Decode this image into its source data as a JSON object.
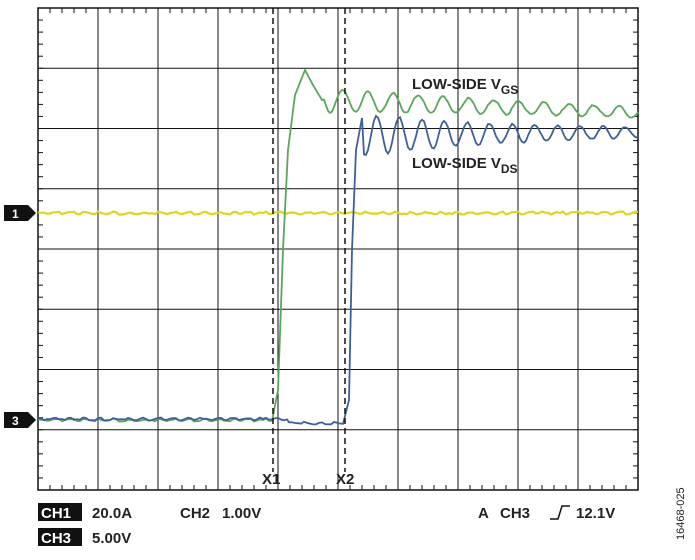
{
  "traces": [
    {
      "label": "LOW-SIDE V",
      "subscript": "GS"
    },
    {
      "label": "LOW-SIDE V",
      "subscript": "DS"
    }
  ],
  "markers": [
    "1",
    "3"
  ],
  "cursors": [
    "X1",
    "X2"
  ],
  "settings": [
    {
      "channel": "CH1",
      "scale": "20.0A"
    },
    {
      "channel": "CH2",
      "scale": "1.00V"
    },
    {
      "channel": "CH3",
      "scale": "5.00V"
    }
  ],
  "trigger": {
    "mode": "A",
    "source": "CH3",
    "level": "12.1V"
  },
  "figure_id": "16468-025"
}
